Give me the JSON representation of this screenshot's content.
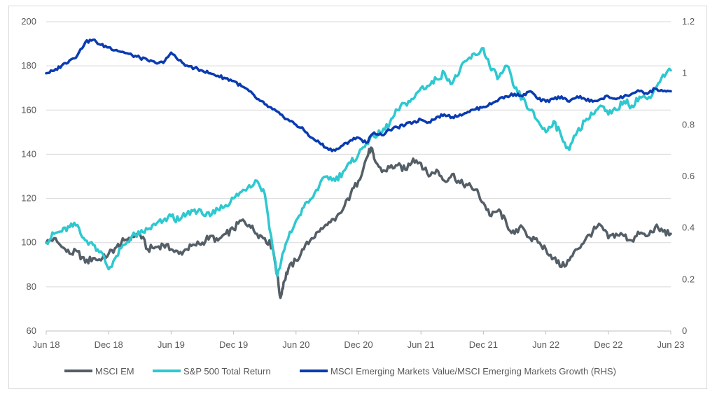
{
  "chart_data": {
    "type": "line",
    "title": "",
    "xlabel": "",
    "ylabel": "",
    "x_ticks": [
      "Jun 18",
      "Dec 18",
      "Jun 19",
      "Dec 19",
      "Jun 20",
      "Dec 20",
      "Jun 21",
      "Dec 21",
      "Jun 22",
      "Dec 22",
      "Jun 23"
    ],
    "y_left": {
      "min": 60,
      "max": 200,
      "ticks": [
        "60",
        "80",
        "100",
        "120",
        "140",
        "160",
        "180",
        "200"
      ]
    },
    "y_right": {
      "min": 0,
      "max": 1.2,
      "ticks": [
        "0",
        "0.2",
        "0.4",
        "0.6",
        "0.8",
        "1",
        "1.2"
      ]
    },
    "grid": true,
    "legend_position": "bottom",
    "series": [
      {
        "name": "MSCI EM",
        "axis": "left",
        "color": "#545e67",
        "points": [
          [
            0,
            100
          ],
          [
            0.25,
            102
          ],
          [
            0.5,
            98
          ],
          [
            0.75,
            95
          ],
          [
            1,
            96
          ],
          [
            1.25,
            91
          ],
          [
            1.5,
            93
          ],
          [
            1.75,
            92
          ],
          [
            2,
            95
          ],
          [
            2.25,
            98
          ],
          [
            2.5,
            101
          ],
          [
            2.75,
            103
          ],
          [
            3,
            104
          ],
          [
            3.25,
            97
          ],
          [
            3.5,
            98
          ],
          [
            3.75,
            99
          ],
          [
            4,
            97
          ],
          [
            4.25,
            95
          ],
          [
            4.5,
            97
          ],
          [
            4.75,
            99
          ],
          [
            5,
            100
          ],
          [
            5.25,
            103
          ],
          [
            5.5,
            101
          ],
          [
            5.75,
            104
          ],
          [
            6,
            106
          ],
          [
            6.25,
            110
          ],
          [
            6.5,
            108
          ],
          [
            6.75,
            104
          ],
          [
            7,
            102
          ],
          [
            7.25,
            98
          ],
          [
            7.4,
            85
          ],
          [
            7.5,
            75
          ],
          [
            7.6,
            82
          ],
          [
            7.75,
            88
          ],
          [
            8,
            92
          ],
          [
            8.25,
            97
          ],
          [
            8.5,
            102
          ],
          [
            8.75,
            105
          ],
          [
            9,
            108
          ],
          [
            9.25,
            110
          ],
          [
            9.5,
            115
          ],
          [
            9.75,
            122
          ],
          [
            10,
            128
          ],
          [
            10.25,
            138
          ],
          [
            10.4,
            143
          ],
          [
            10.5,
            138
          ],
          [
            10.75,
            132
          ],
          [
            11,
            134
          ],
          [
            11.25,
            135
          ],
          [
            11.5,
            133
          ],
          [
            11.75,
            138
          ],
          [
            12,
            136
          ],
          [
            12.25,
            130
          ],
          [
            12.5,
            133
          ],
          [
            12.75,
            128
          ],
          [
            13,
            131
          ],
          [
            13.25,
            127
          ],
          [
            13.5,
            126
          ],
          [
            13.75,
            124
          ],
          [
            14,
            118
          ],
          [
            14.25,
            112
          ],
          [
            14.5,
            115
          ],
          [
            14.75,
            108
          ],
          [
            15,
            104
          ],
          [
            15.25,
            107
          ],
          [
            15.5,
            102
          ],
          [
            15.75,
            100
          ],
          [
            16,
            97
          ],
          [
            16.25,
            93
          ],
          [
            16.5,
            89
          ],
          [
            16.75,
            92
          ],
          [
            17,
            97
          ],
          [
            17.25,
            101
          ],
          [
            17.5,
            105
          ],
          [
            17.75,
            108
          ],
          [
            18,
            102
          ],
          [
            18.25,
            104
          ],
          [
            18.5,
            103
          ],
          [
            18.75,
            101
          ],
          [
            19,
            104
          ],
          [
            19.25,
            103
          ],
          [
            19.5,
            107
          ],
          [
            19.75,
            105
          ],
          [
            20,
            104
          ]
        ]
      },
      {
        "name": "S&P 500 Total Return",
        "axis": "left",
        "color": "#2ec8d0",
        "points": [
          [
            0,
            100
          ],
          [
            0.25,
            104
          ],
          [
            0.5,
            105
          ],
          [
            0.75,
            107
          ],
          [
            1,
            108
          ],
          [
            1.25,
            101
          ],
          [
            1.5,
            99
          ],
          [
            1.75,
            96
          ],
          [
            2,
            88
          ],
          [
            2.25,
            94
          ],
          [
            2.5,
            99
          ],
          [
            2.75,
            103
          ],
          [
            3,
            104
          ],
          [
            3.25,
            106
          ],
          [
            3.5,
            108
          ],
          [
            3.75,
            110
          ],
          [
            4,
            112
          ],
          [
            4.25,
            110
          ],
          [
            4.5,
            113
          ],
          [
            4.75,
            115
          ],
          [
            5,
            113
          ],
          [
            5.25,
            112
          ],
          [
            5.5,
            115
          ],
          [
            5.75,
            117
          ],
          [
            6,
            120
          ],
          [
            6.25,
            123
          ],
          [
            6.5,
            126
          ],
          [
            6.75,
            128
          ],
          [
            7,
            122
          ],
          [
            7.25,
            98
          ],
          [
            7.4,
            85
          ],
          [
            7.6,
            96
          ],
          [
            7.75,
            102
          ],
          [
            8,
            110
          ],
          [
            8.25,
            116
          ],
          [
            8.5,
            120
          ],
          [
            8.75,
            126
          ],
          [
            9,
            130
          ],
          [
            9.25,
            128
          ],
          [
            9.5,
            132
          ],
          [
            9.75,
            136
          ],
          [
            10,
            140
          ],
          [
            10.25,
            145
          ],
          [
            10.5,
            148
          ],
          [
            10.75,
            150
          ],
          [
            11,
            154
          ],
          [
            11.25,
            160
          ],
          [
            11.5,
            163
          ],
          [
            11.75,
            165
          ],
          [
            12,
            170
          ],
          [
            12.25,
            171
          ],
          [
            12.5,
            174
          ],
          [
            12.75,
            177
          ],
          [
            13,
            172
          ],
          [
            13.25,
            178
          ],
          [
            13.5,
            183
          ],
          [
            13.75,
            185
          ],
          [
            14,
            188
          ],
          [
            14.25,
            178
          ],
          [
            14.5,
            175
          ],
          [
            14.75,
            180
          ],
          [
            15,
            170
          ],
          [
            15.25,
            165
          ],
          [
            15.5,
            160
          ],
          [
            15.75,
            155
          ],
          [
            16,
            150
          ],
          [
            16.25,
            155
          ],
          [
            16.5,
            148
          ],
          [
            16.75,
            142
          ],
          [
            17,
            150
          ],
          [
            17.25,
            155
          ],
          [
            17.5,
            158
          ],
          [
            17.75,
            162
          ],
          [
            18,
            158
          ],
          [
            18.25,
            160
          ],
          [
            18.5,
            164
          ],
          [
            18.75,
            162
          ],
          [
            19,
            166
          ],
          [
            19.25,
            165
          ],
          [
            19.5,
            170
          ],
          [
            19.75,
            176
          ],
          [
            20,
            178
          ]
        ]
      },
      {
        "name": "MSCI Emerging Markets Value/MSCI Emerging Markets Growth (RHS)",
        "axis": "right",
        "color": "#0a3bb0",
        "points": [
          [
            0,
            1.0
          ],
          [
            0.25,
            1.01
          ],
          [
            0.5,
            1.03
          ],
          [
            0.75,
            1.05
          ],
          [
            1,
            1.07
          ],
          [
            1.25,
            1.12
          ],
          [
            1.5,
            1.13
          ],
          [
            1.75,
            1.11
          ],
          [
            2,
            1.1
          ],
          [
            2.25,
            1.09
          ],
          [
            2.5,
            1.08
          ],
          [
            2.75,
            1.07
          ],
          [
            3,
            1.06
          ],
          [
            3.25,
            1.05
          ],
          [
            3.5,
            1.04
          ],
          [
            3.75,
            1.04
          ],
          [
            4,
            1.08
          ],
          [
            4.25,
            1.05
          ],
          [
            4.5,
            1.03
          ],
          [
            4.75,
            1.02
          ],
          [
            5,
            1.01
          ],
          [
            5.25,
            1.0
          ],
          [
            5.5,
            0.99
          ],
          [
            5.75,
            0.98
          ],
          [
            6,
            0.97
          ],
          [
            6.25,
            0.95
          ],
          [
            6.5,
            0.93
          ],
          [
            6.75,
            0.9
          ],
          [
            7,
            0.88
          ],
          [
            7.25,
            0.86
          ],
          [
            7.5,
            0.84
          ],
          [
            7.75,
            0.82
          ],
          [
            8,
            0.8
          ],
          [
            8.25,
            0.78
          ],
          [
            8.5,
            0.75
          ],
          [
            8.75,
            0.73
          ],
          [
            9,
            0.71
          ],
          [
            9.25,
            0.7
          ],
          [
            9.5,
            0.72
          ],
          [
            9.75,
            0.74
          ],
          [
            10,
            0.75
          ],
          [
            10.25,
            0.73
          ],
          [
            10.5,
            0.77
          ],
          [
            10.75,
            0.76
          ],
          [
            11,
            0.78
          ],
          [
            11.25,
            0.79
          ],
          [
            11.5,
            0.8
          ],
          [
            11.75,
            0.81
          ],
          [
            12,
            0.82
          ],
          [
            12.25,
            0.81
          ],
          [
            12.5,
            0.83
          ],
          [
            12.75,
            0.84
          ],
          [
            13,
            0.83
          ],
          [
            13.25,
            0.84
          ],
          [
            13.5,
            0.85
          ],
          [
            13.75,
            0.86
          ],
          [
            14,
            0.87
          ],
          [
            14.25,
            0.88
          ],
          [
            14.5,
            0.9
          ],
          [
            14.75,
            0.91
          ],
          [
            15,
            0.92
          ],
          [
            15.25,
            0.91
          ],
          [
            15.5,
            0.93
          ],
          [
            15.75,
            0.9
          ],
          [
            16,
            0.89
          ],
          [
            16.25,
            0.9
          ],
          [
            16.5,
            0.91
          ],
          [
            16.75,
            0.89
          ],
          [
            17,
            0.91
          ],
          [
            17.25,
            0.9
          ],
          [
            17.5,
            0.89
          ],
          [
            17.75,
            0.9
          ],
          [
            18,
            0.91
          ],
          [
            18.25,
            0.9
          ],
          [
            18.5,
            0.91
          ],
          [
            18.75,
            0.92
          ],
          [
            19,
            0.93
          ],
          [
            19.25,
            0.92
          ],
          [
            19.5,
            0.94
          ],
          [
            19.75,
            0.93
          ],
          [
            20,
            0.93
          ]
        ]
      }
    ]
  }
}
